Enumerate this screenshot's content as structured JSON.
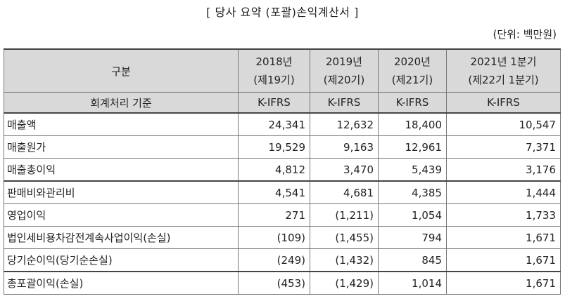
{
  "title": "[ 당사 요약 (포괄)손익계산서 ]",
  "unit": "(단위: 백만원)",
  "table": {
    "header_label": "구분",
    "columns": [
      {
        "line1": "2018년",
        "line2": "(제19기)"
      },
      {
        "line1": "2019년",
        "line2": "(제20기)"
      },
      {
        "line1": "2020년",
        "line2": "(제21기)"
      },
      {
        "line1": "2021년 1분기",
        "line2": "(제22기 1분기)"
      }
    ],
    "basis_label": "회계처리 기준",
    "basis": [
      "K-IFRS",
      "K-IFRS",
      "K-IFRS",
      "K-IFRS"
    ],
    "rows": [
      {
        "label": "매출액",
        "values": [
          "24,341",
          "12,632",
          "18,400",
          "10,547"
        ]
      },
      {
        "label": "매출원가",
        "values": [
          "19,529",
          "9,163",
          "12,961",
          "7,371"
        ]
      },
      {
        "label": "매출총이익",
        "values": [
          "4,812",
          "3,470",
          "5,439",
          "3,176"
        ]
      },
      {
        "label": "판매비와관리비",
        "values": [
          "4,541",
          "4,681",
          "4,385",
          "1,444"
        ]
      },
      {
        "label": "영업이익",
        "values": [
          "271",
          "(1,211)",
          "1,054",
          "1,733"
        ]
      },
      {
        "label": "법인세비용차감전계속사업이익(손실)",
        "values": [
          "(109)",
          "(1,455)",
          "794",
          "1,671"
        ]
      },
      {
        "label": "당기순이익(당기순손실)",
        "values": [
          "(249)",
          "(1,432)",
          "845",
          "1,671"
        ]
      },
      {
        "label": "총포괄이익(손실)",
        "values": [
          "(453)",
          "(1,429)",
          "1,014",
          "1,671"
        ]
      }
    ]
  }
}
